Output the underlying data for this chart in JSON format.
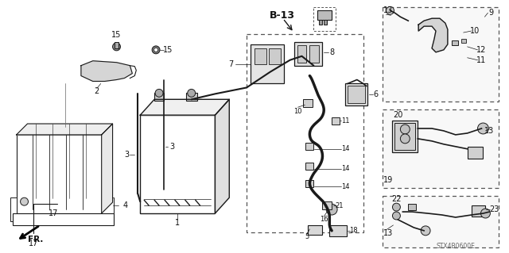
{
  "bg_color": "#ffffff",
  "fig_width": 6.4,
  "fig_height": 3.19,
  "dpi": 100,
  "watermark": "STX4B0600E",
  "lc": "#1a1a1a",
  "tc": "#111111",
  "fs": 7.0,
  "fs_small": 6.0,
  "fs_bold": 8.5
}
